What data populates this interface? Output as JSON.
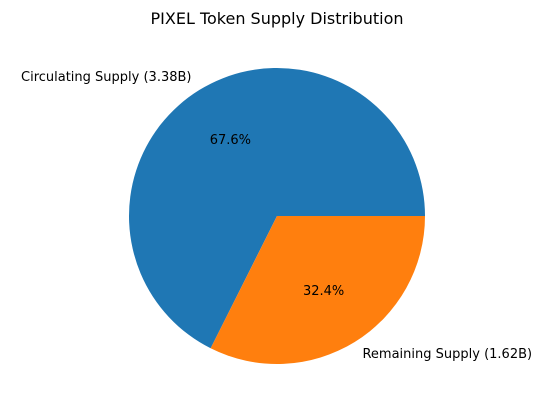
{
  "chart_data": {
    "type": "pie",
    "title": "PIXEL Token Supply Distribution",
    "slices": [
      {
        "label": "Circulating Supply (3.38B)",
        "percent_label": "67.6%",
        "value": 67.6,
        "color": "#1f77b4"
      },
      {
        "label": "Remaining Supply (1.62B)",
        "percent_label": "32.4%",
        "value": 32.4,
        "color": "#ff7f0e"
      }
    ],
    "start_angle_deg": 0,
    "direction": "counterclockwise"
  }
}
